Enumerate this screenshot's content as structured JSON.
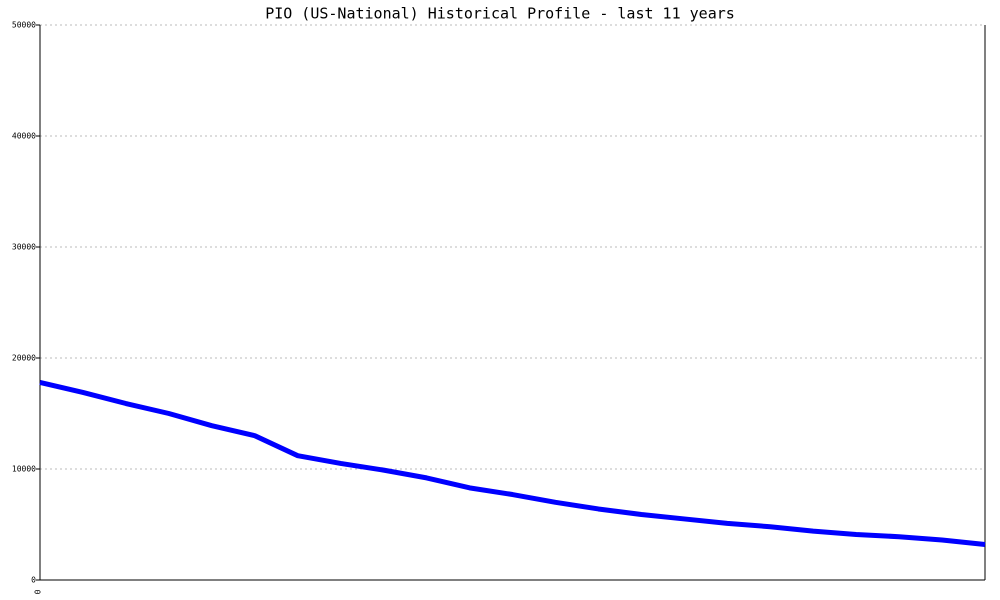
{
  "chart_data": {
    "type": "line",
    "title": "PIO (US-National) Historical Profile - last 11 years",
    "categories": [
      "0",
      null,
      null,
      null,
      null,
      null,
      null,
      null,
      null,
      null,
      null,
      null,
      null,
      null,
      null,
      null,
      null,
      null,
      null,
      null,
      null,
      null,
      null
    ],
    "series": [
      {
        "color": "#0000ff",
        "values": [
          17800,
          16900,
          15900,
          15000,
          13900,
          13000,
          11200,
          10500,
          9900,
          9200,
          8300,
          7700,
          7000,
          6400,
          5900,
          5500,
          5100,
          4800,
          4400,
          4100,
          3900,
          3600,
          3200
        ]
      }
    ],
    "ylim": [
      0,
      50000
    ],
    "yticks": [
      0,
      10000,
      20000,
      30000,
      40000,
      50000
    ],
    "grid": true
  }
}
